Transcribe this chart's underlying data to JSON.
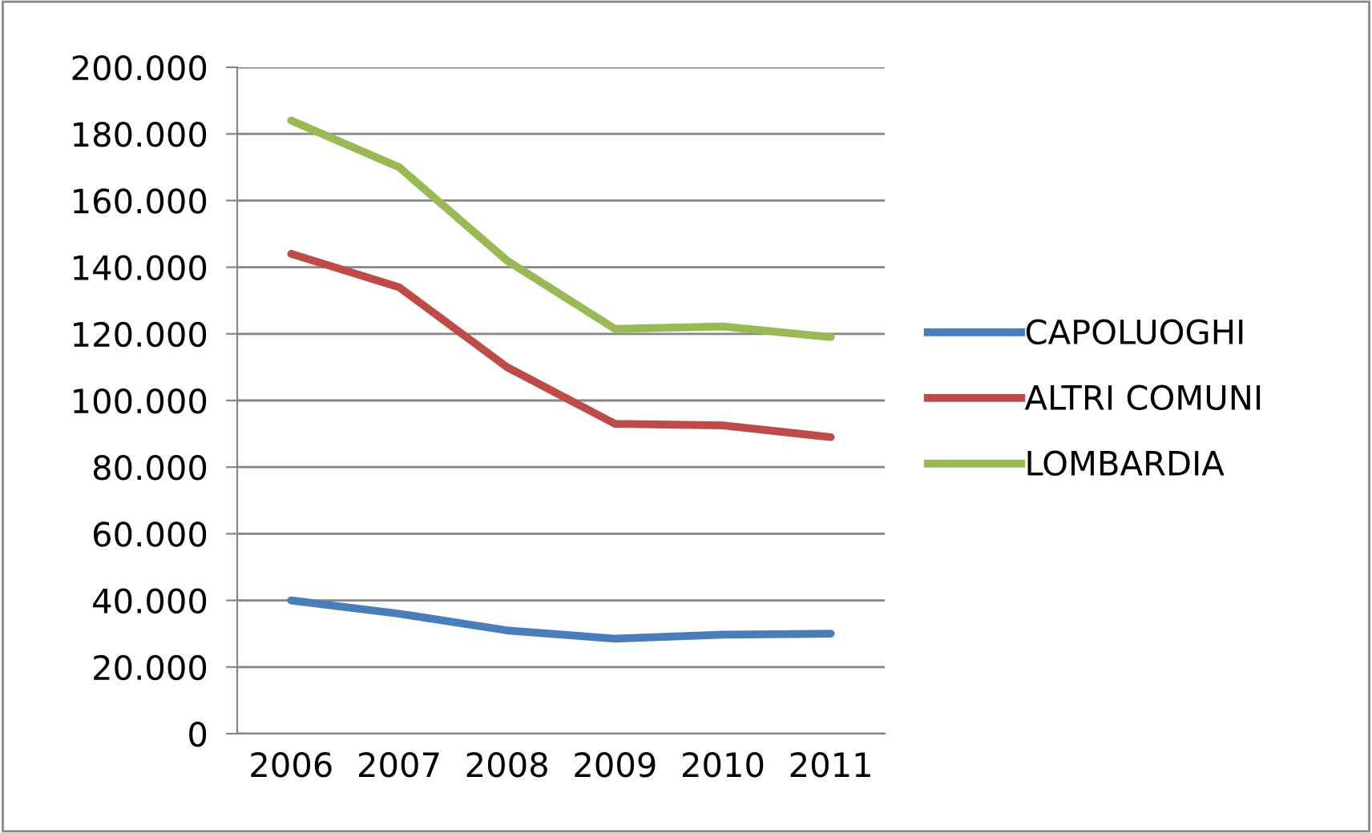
{
  "chart_data": {
    "type": "line",
    "categories": [
      "2006",
      "2007",
      "2008",
      "2009",
      "2010",
      "2011"
    ],
    "series": [
      {
        "name": "CAPOLUOGHI",
        "color": "#4a7ebb",
        "values": [
          40000,
          36000,
          31000,
          28500,
          29700,
          30000
        ]
      },
      {
        "name": "ALTRI COMUNI",
        "color": "#be4b48",
        "values": [
          144000,
          134000,
          110000,
          93000,
          92500,
          89000
        ]
      },
      {
        "name": "LOMBARDIA",
        "color": "#98b954",
        "values": [
          184000,
          170000,
          142000,
          121500,
          122200,
          119000
        ]
      }
    ],
    "ylim": [
      0,
      200000
    ],
    "yticks": [
      0,
      {
        "value": 20000,
        "label": "20.000"
      },
      {
        "value": 40000,
        "label": "40.000"
      },
      {
        "value": 60000,
        "label": "60.000"
      },
      {
        "value": 80000,
        "label": "80.000"
      },
      {
        "value": 100000,
        "label": "100.000"
      },
      {
        "value": 120000,
        "label": "120.000"
      },
      {
        "value": 140000,
        "label": "140.000"
      },
      {
        "value": 160000,
        "label": "160.000"
      },
      {
        "value": 180000,
        "label": "180.000"
      },
      {
        "value": 200000,
        "label": "200.000"
      }
    ],
    "grid": "y",
    "legend": "right",
    "marker": "none",
    "line_style": "solid"
  }
}
